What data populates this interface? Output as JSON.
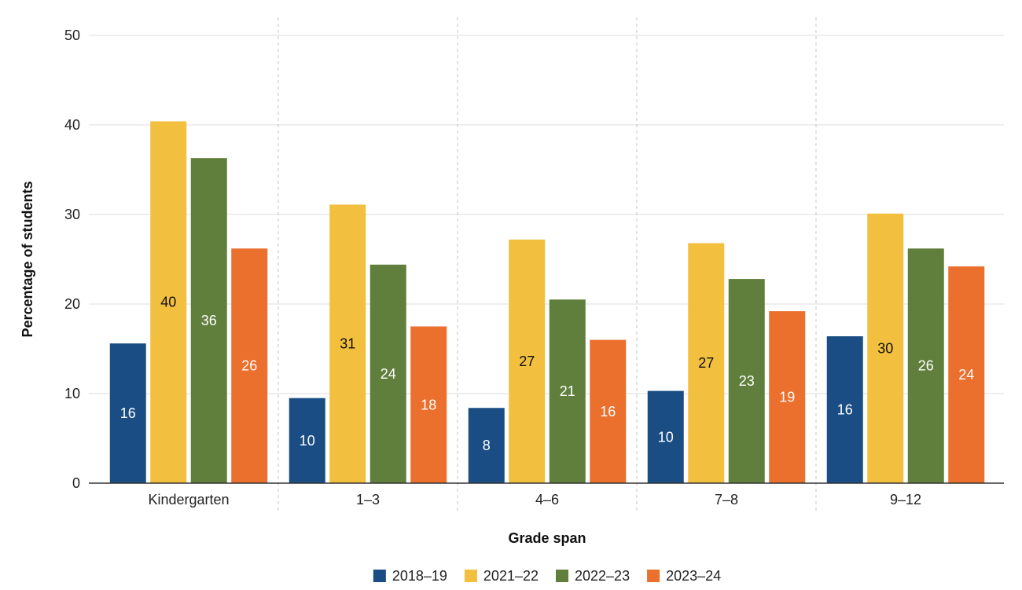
{
  "chart_data": {
    "type": "bar",
    "title": "",
    "xlabel": "Grade span",
    "ylabel": "Percentage of students",
    "categories": [
      "Kindergarten",
      "1–3",
      "4–6",
      "7–8",
      "9–12"
    ],
    "ylim": [
      0,
      50
    ],
    "yticks": [
      0,
      10,
      20,
      30,
      40,
      50
    ],
    "grid": true,
    "legend_position": "bottom",
    "series": [
      {
        "name": "2018–19",
        "color": "#1a4d84",
        "label_color": "#ffffff",
        "values": [
          15.6,
          9.5,
          8.4,
          10.3,
          16.4
        ],
        "labels": [
          "16",
          "10",
          "8",
          "10",
          "16"
        ]
      },
      {
        "name": "2021–22",
        "color": "#f2bf3f",
        "label_color": "#111111",
        "values": [
          40.4,
          31.1,
          27.2,
          26.8,
          30.1
        ],
        "labels": [
          "40",
          "31",
          "27",
          "27",
          "30"
        ]
      },
      {
        "name": "2022–23",
        "color": "#617f3c",
        "label_color": "#ffffff",
        "values": [
          36.3,
          24.4,
          20.5,
          22.8,
          26.2
        ],
        "labels": [
          "36",
          "24",
          "21",
          "23",
          "26"
        ]
      },
      {
        "name": "2023–24",
        "color": "#eb6f2d",
        "label_color": "#ffffff",
        "values": [
          26.2,
          17.5,
          16.0,
          19.2,
          24.2
        ],
        "labels": [
          "26",
          "18",
          "16",
          "19",
          "24"
        ]
      }
    ]
  }
}
